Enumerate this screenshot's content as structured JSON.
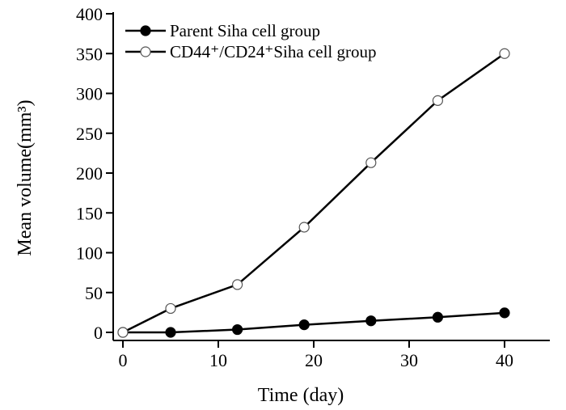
{
  "chart_data": {
    "type": "line",
    "title": "",
    "xlabel": "Time (day)",
    "ylabel": "Mean volume(mm³)",
    "xlim": [
      -1,
      45
    ],
    "ylim": [
      -10,
      400
    ],
    "xticks": [
      0,
      10,
      20,
      30,
      40
    ],
    "yticks": [
      0,
      50,
      100,
      150,
      200,
      250,
      300,
      350,
      400
    ],
    "grid": false,
    "legend_position": "top-left",
    "x": [
      0,
      5,
      12,
      19,
      26,
      33,
      40
    ],
    "series": [
      {
        "name": "Parent Siha cell group",
        "marker": "filled-circle",
        "color": "#000000",
        "values": [
          0,
          0,
          3.5,
          9.5,
          14.5,
          19,
          24.5
        ]
      },
      {
        "name": "CD44⁺/CD24⁺Siha cell group",
        "marker": "open-circle",
        "color": "#000000",
        "values": [
          0,
          30,
          60,
          132,
          213,
          291,
          350
        ]
      }
    ]
  }
}
